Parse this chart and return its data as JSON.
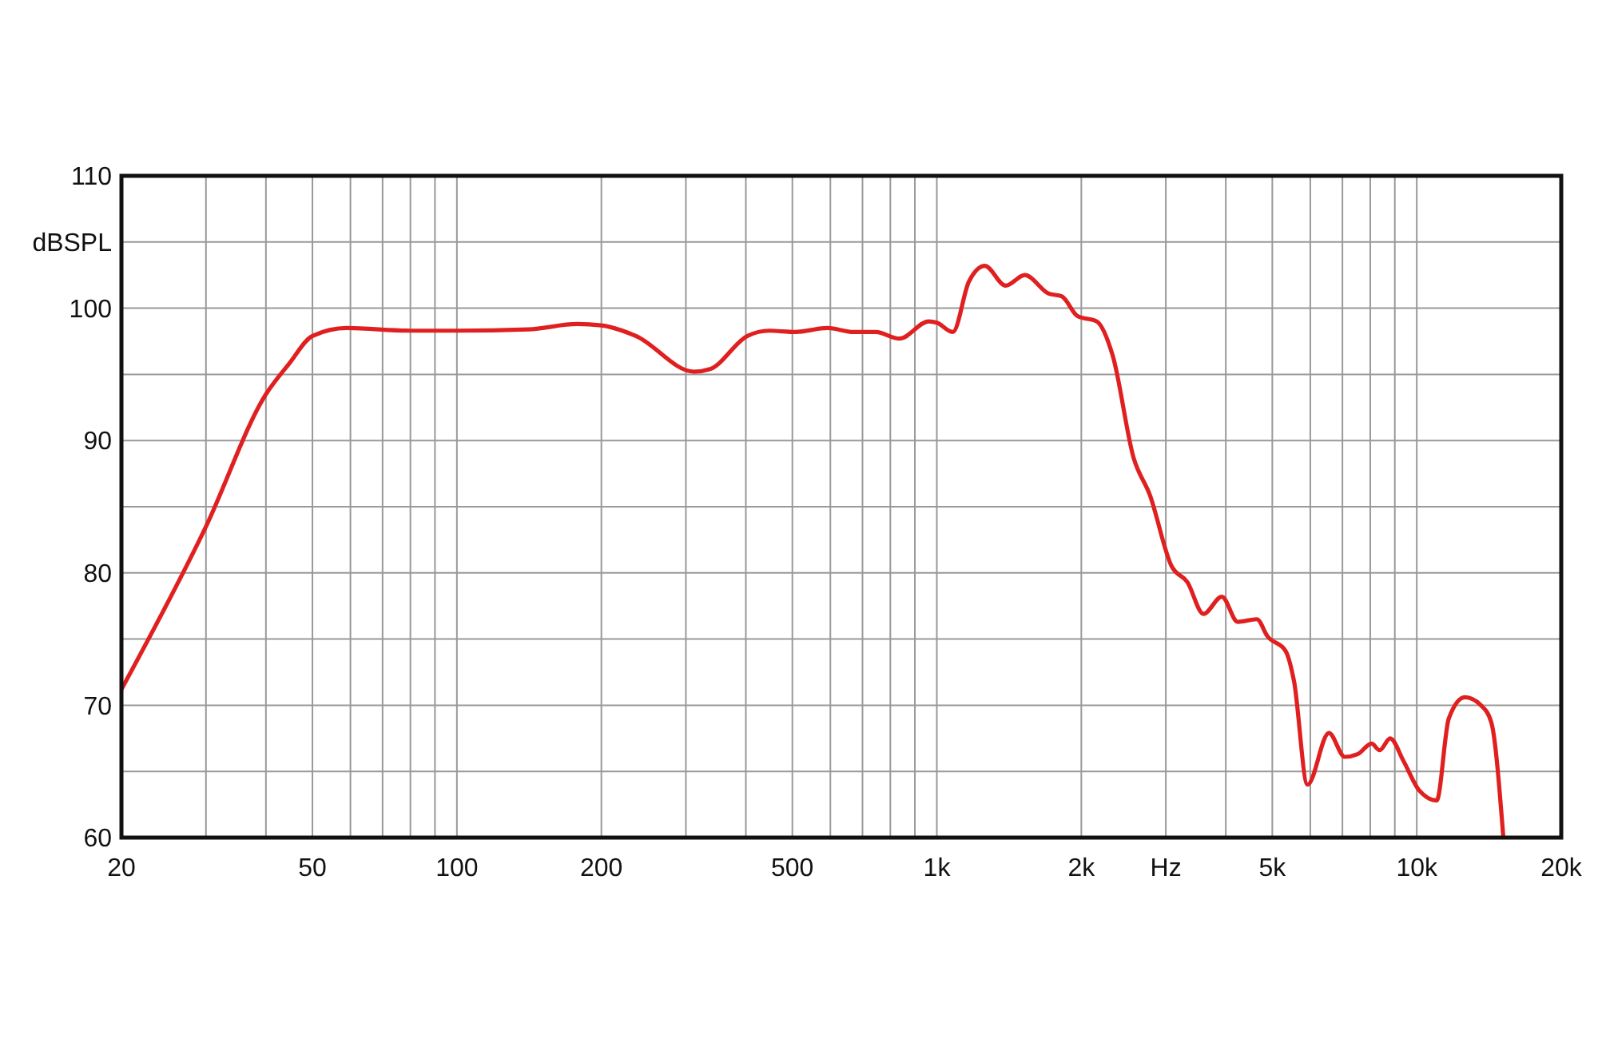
{
  "chart_data": {
    "type": "line",
    "log": "x",
    "grid": true,
    "marker": "none",
    "line_style": "solid",
    "xlim": [
      20,
      20000
    ],
    "ylim": [
      60,
      110
    ],
    "xticks": [
      20,
      {
        "value": 30,
        "label": null
      },
      {
        "value": 40,
        "label": null
      },
      50,
      {
        "value": 60,
        "label": null
      },
      {
        "value": 70,
        "label": null
      },
      {
        "value": 80,
        "label": null
      },
      {
        "value": 90,
        "label": null
      },
      100,
      200,
      {
        "value": 300,
        "label": null
      },
      {
        "value": 400,
        "label": null
      },
      500,
      {
        "value": 600,
        "label": null
      },
      {
        "value": 700,
        "label": null
      },
      {
        "value": 800,
        "label": null
      },
      {
        "value": 900,
        "label": null
      },
      {
        "value": 1000,
        "label": "1k"
      },
      {
        "value": 2000,
        "label": "2k"
      },
      {
        "value": 3000,
        "label": "Hz"
      },
      {
        "value": 4000,
        "label": null
      },
      {
        "value": 5000,
        "label": "5k"
      },
      {
        "value": 6000,
        "label": null
      },
      {
        "value": 7000,
        "label": null
      },
      {
        "value": 8000,
        "label": null
      },
      {
        "value": 9000,
        "label": null
      },
      {
        "value": 10000,
        "label": "10k"
      },
      {
        "value": 20000,
        "label": "20k"
      }
    ],
    "yticks": [
      60,
      {
        "value": 65,
        "label": null
      },
      70,
      {
        "value": 75,
        "label": null
      },
      80,
      {
        "value": 85,
        "label": null
      },
      90,
      {
        "value": 95,
        "label": null
      },
      100,
      {
        "value": 105,
        "label": "dBSPL"
      },
      110
    ],
    "series": [
      {
        "color": "#e02020",
        "x": [
          20,
          30,
          40,
          44.7,
          50,
          59,
          80,
          100,
          141,
          178,
          200,
          236,
          312,
          337,
          403,
          447,
          507,
          592,
          671,
          746,
          836,
          962,
          1000,
          1080,
          1166,
          1259,
          1391,
          1525,
          1711,
          1820,
          1965,
          2154,
          2326,
          2570,
          2778,
          3085,
          3327,
          3594,
          3925,
          4236,
          4642,
          4887,
          5330,
          5550,
          5920,
          6560,
          7080,
          7530,
          8050,
          8370,
          8800,
          9380,
          10100,
          11000,
          11660,
          12600,
          13600,
          14300,
          15150
        ],
        "values": [
          71.2,
          83.5,
          93.5,
          95.8,
          97.9,
          98.5,
          98.3,
          98.3,
          98.4,
          98.8,
          98.7,
          97.9,
          95.2,
          95.4,
          97.9,
          98.3,
          98.2,
          98.5,
          98.2,
          98.2,
          97.7,
          99.0,
          98.9,
          98.2,
          102.0,
          103.2,
          101.7,
          102.5,
          101.1,
          100.9,
          99.4,
          99.0,
          96.4,
          88.7,
          85.9,
          80.5,
          79.3,
          76.9,
          78.2,
          76.3,
          76.5,
          75.2,
          74.1,
          71.8,
          64.0,
          67.9,
          66.1,
          66.3,
          67.1,
          66.6,
          67.5,
          65.8,
          63.6,
          62.8,
          69.0,
          70.6,
          70.0,
          68.7,
          60.0
        ]
      }
    ]
  }
}
